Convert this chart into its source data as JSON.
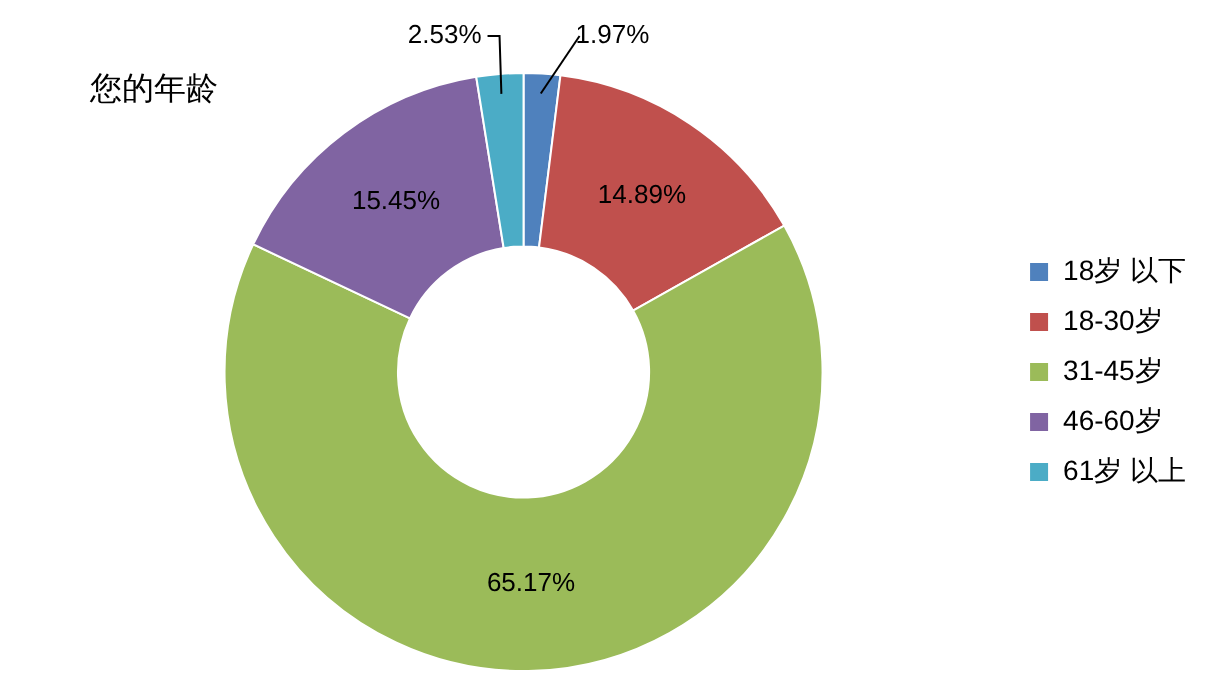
{
  "chart_data": {
    "type": "donut",
    "title": "您的年龄",
    "categories": [
      "18岁 以下",
      "18-30岁",
      "31-45岁",
      "46-60岁",
      "61岁 以上"
    ],
    "values": [
      1.97,
      14.89,
      65.17,
      15.45,
      2.53
    ],
    "colors": [
      "#4f81bd",
      "#c0504d",
      "#9bbb59",
      "#8064a2",
      "#4bacc6"
    ],
    "value_labels": [
      "1.97%",
      "14.89%",
      "65.17%",
      "15.45%",
      "2.53%"
    ],
    "legend": "right"
  }
}
